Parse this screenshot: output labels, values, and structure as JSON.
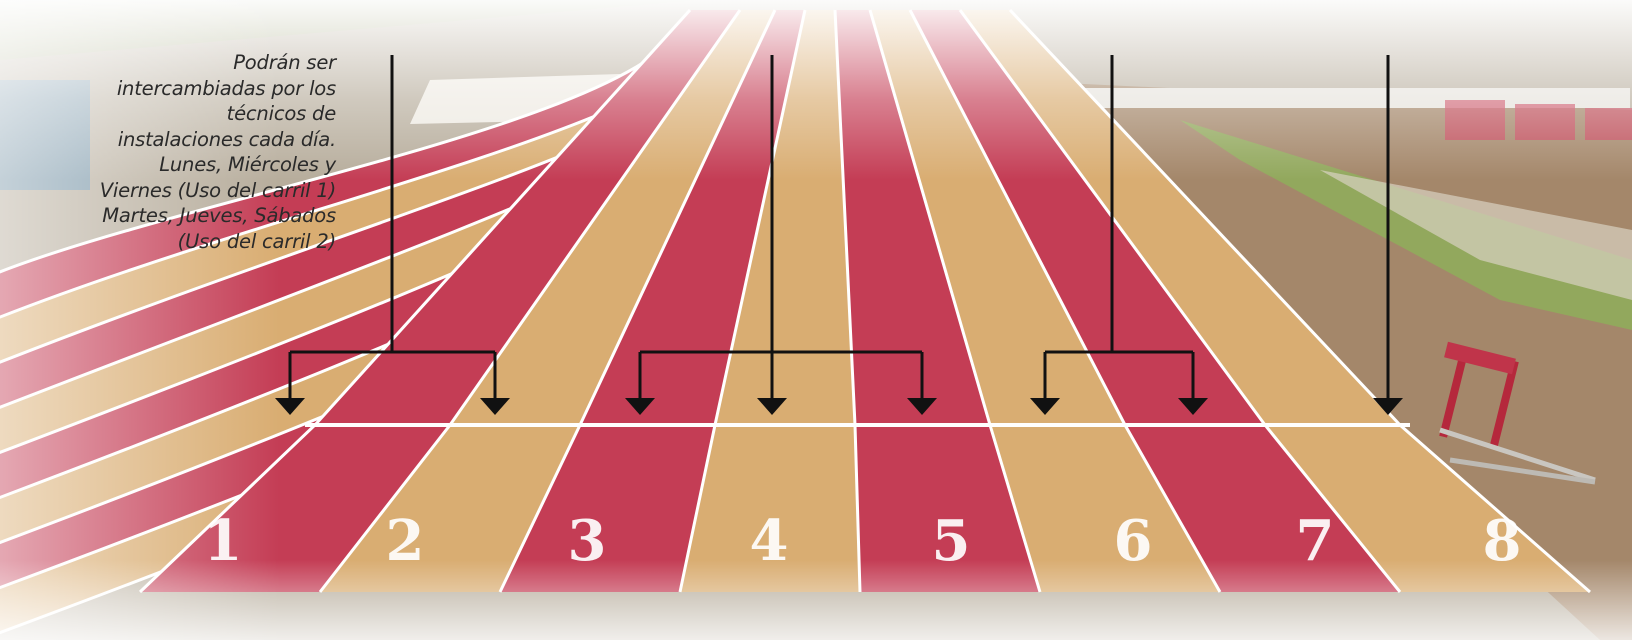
{
  "caption": {
    "lines": [
      "Podrán ser",
      "intercambiadas por los",
      "técnicos de",
      "instalaciones cada día.",
      "Lunes, Miércoles y",
      "Viernes (Uso del carril 1)",
      "Martes, Jueves, Sábados",
      "(Uso del carril 2)"
    ]
  },
  "lanes": [
    "1",
    "2",
    "3",
    "4",
    "5",
    "6",
    "7",
    "8"
  ],
  "colors": {
    "lane_red": "#c43d55",
    "lane_tan": "#d9ad72",
    "line_white": "#ffffff",
    "arrow": "#111111",
    "grass": "#8fb05a",
    "dirt": "#a5886b",
    "fog": "#f6f3ee"
  },
  "arrow_groups": [
    {
      "name": "group-lanes-1-2",
      "targets": [
        "1",
        "2"
      ]
    },
    {
      "name": "group-lanes-3-4-5",
      "targets": [
        "3",
        "4",
        "5"
      ]
    },
    {
      "name": "group-lanes-6-7",
      "targets": [
        "6",
        "7"
      ]
    },
    {
      "name": "group-lane-8",
      "targets": [
        "8"
      ]
    }
  ]
}
